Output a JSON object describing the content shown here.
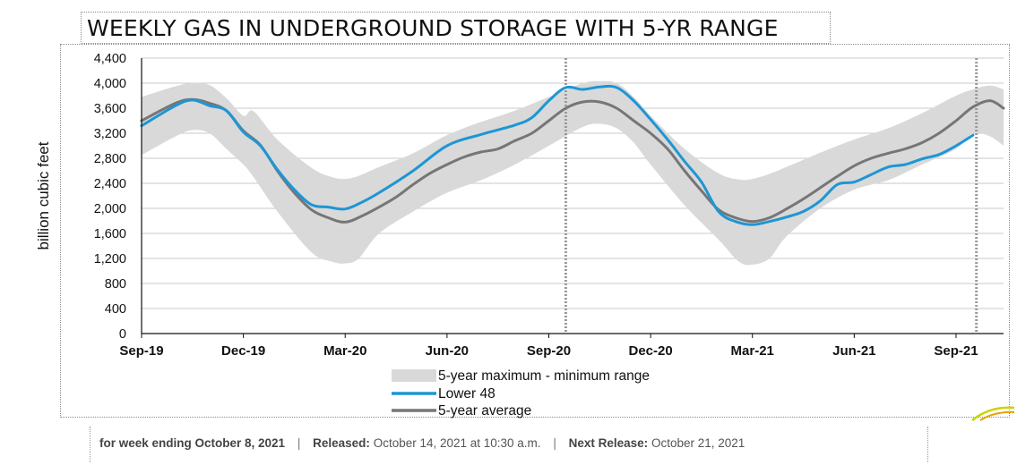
{
  "chart_data": {
    "type": "area",
    "title": "WEEKLY GAS IN UNDERGROUND STORAGE WITH 5-YR RANGE",
    "ylabel": "billion cubic feet",
    "xlabel": "",
    "ylim": [
      0,
      4400
    ],
    "yticks": [
      0,
      400,
      800,
      1200,
      1600,
      2000,
      2400,
      2800,
      3200,
      3600,
      4000,
      4400
    ],
    "ytick_labels": [
      "0",
      "400",
      "800",
      "1,200",
      "1,600",
      "2,000",
      "2,400",
      "2,800",
      "3,200",
      "3,600",
      "4,000",
      "4,400"
    ],
    "xlim": [
      0,
      25.4
    ],
    "xticks": [
      0,
      3,
      6,
      9,
      12,
      15,
      18,
      21,
      24
    ],
    "xtick_labels": [
      "Sep-19",
      "Dec-19",
      "Mar-20",
      "Jun-20",
      "Sep-20",
      "Dec-20",
      "Mar-21",
      "Jun-21",
      "Sep-21"
    ],
    "x_unit": "months since Sep-2019",
    "vlines": [
      12.5,
      24.6
    ],
    "legend": [
      "5-year maximum - minimum range",
      "Lower 48",
      "5-year average"
    ],
    "legend_position": "bottom",
    "series": [
      {
        "name": "5-year maximum - minimum range",
        "kind": "band",
        "color": "#d9d9d9",
        "x": [
          0,
          1,
          1.5,
          2,
          2.5,
          3,
          3.3,
          4,
          5,
          5.6,
          6,
          6.4,
          7,
          8,
          9,
          10,
          11,
          12,
          13,
          13.5,
          14,
          14.5,
          15,
          16,
          17,
          17.6,
          18,
          18.5,
          19,
          20,
          21,
          22,
          23,
          24,
          24.5,
          25,
          25.4
        ],
        "high": [
          3780,
          3950,
          4000,
          3970,
          3760,
          3480,
          3550,
          3100,
          2650,
          2500,
          2470,
          2520,
          2660,
          2880,
          3170,
          3380,
          3560,
          3780,
          4000,
          4030,
          4000,
          3780,
          3480,
          2950,
          2560,
          2460,
          2470,
          2550,
          2660,
          2890,
          3100,
          3280,
          3520,
          3800,
          3900,
          3960,
          3900
        ],
        "low": [
          2850,
          3150,
          3250,
          3200,
          2950,
          2700,
          2500,
          1950,
          1300,
          1150,
          1120,
          1200,
          1600,
          1950,
          2250,
          2450,
          2700,
          3000,
          3300,
          3350,
          3280,
          3050,
          2700,
          2050,
          1500,
          1150,
          1100,
          1200,
          1550,
          2000,
          2300,
          2450,
          2700,
          2950,
          3200,
          3150,
          3000
        ]
      },
      {
        "name": "Lower 48",
        "kind": "line",
        "color": "#1e96d4",
        "x": [
          0,
          1,
          1.5,
          2,
          2.5,
          3,
          3.5,
          4,
          4.5,
          5,
          5.5,
          6,
          6.5,
          7,
          8,
          9,
          10,
          11,
          11.5,
          12,
          12.5,
          13,
          13.5,
          14,
          14.5,
          15,
          15.5,
          16,
          16.5,
          17,
          17.5,
          18,
          18.5,
          19,
          19.5,
          20,
          20.5,
          21,
          21.5,
          22,
          22.5,
          23,
          23.5,
          24,
          24.5
        ],
        "values": [
          3320,
          3640,
          3730,
          3640,
          3560,
          3220,
          3000,
          2620,
          2300,
          2060,
          2020,
          1990,
          2100,
          2250,
          2600,
          3000,
          3180,
          3330,
          3450,
          3720,
          3930,
          3900,
          3940,
          3930,
          3720,
          3420,
          3100,
          2750,
          2420,
          1950,
          1790,
          1740,
          1790,
          1860,
          1950,
          2120,
          2380,
          2420,
          2540,
          2660,
          2700,
          2790,
          2860,
          3000,
          3170
        ]
      },
      {
        "name": "5-year average",
        "kind": "line",
        "color": "#767676",
        "x": [
          0,
          1,
          1.5,
          2,
          2.5,
          3,
          3.5,
          4,
          4.5,
          5,
          5.5,
          6,
          6.5,
          7,
          7.5,
          8,
          8.5,
          9,
          9.5,
          10,
          10.5,
          11,
          11.5,
          12,
          12.5,
          13,
          13.5,
          14,
          14.5,
          15,
          15.5,
          16,
          16.5,
          17,
          17.5,
          18,
          18.5,
          19,
          19.5,
          20,
          20.5,
          21,
          21.5,
          22,
          22.5,
          23,
          23.5,
          24,
          24.5,
          25,
          25.4
        ],
        "values": [
          3400,
          3680,
          3740,
          3680,
          3560,
          3240,
          3010,
          2600,
          2250,
          1980,
          1850,
          1780,
          1880,
          2020,
          2180,
          2380,
          2560,
          2700,
          2820,
          2900,
          2950,
          3080,
          3200,
          3400,
          3600,
          3700,
          3700,
          3600,
          3400,
          3200,
          2950,
          2600,
          2280,
          1980,
          1850,
          1790,
          1850,
          1990,
          2150,
          2330,
          2510,
          2680,
          2800,
          2880,
          2950,
          3050,
          3200,
          3400,
          3620,
          3720,
          3600
        ]
      }
    ]
  },
  "footer": {
    "week_label": "for week ending October 8, 2021",
    "released_label": "Released:",
    "released_value": "October 14, 2021 at 10:30 a.m.",
    "next_label": "Next Release:",
    "next_value": "October 21, 2021",
    "separator": "|"
  }
}
